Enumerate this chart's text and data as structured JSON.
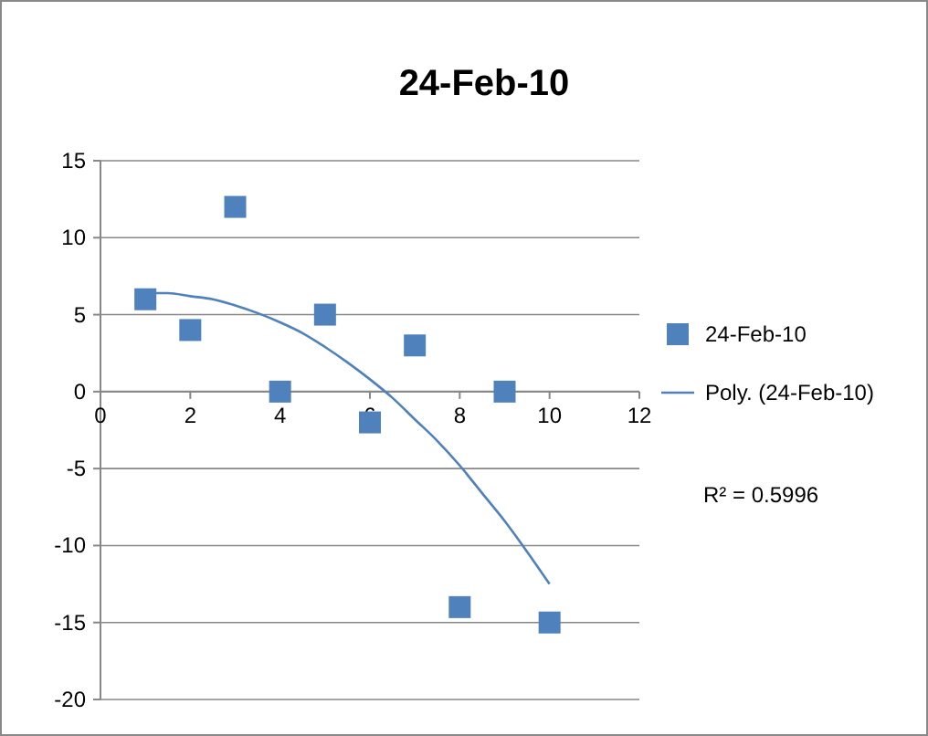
{
  "chart_data": {
    "type": "scatter",
    "title": "24-Feb-10",
    "xlim": [
      0,
      12
    ],
    "xticks": [
      0,
      2,
      4,
      6,
      8,
      10,
      12
    ],
    "ylim": [
      -20,
      15
    ],
    "yticks": [
      -20,
      -15,
      -10,
      -5,
      0,
      5,
      10,
      15
    ],
    "grid": "y",
    "legend": "right",
    "annotations": [
      "R² = 0.5996"
    ],
    "series": [
      {
        "name": "24-Feb-10",
        "marker": "square",
        "color": "#4f81bd",
        "x": [
          1,
          2,
          3,
          4,
          5,
          6,
          7,
          8,
          9,
          10
        ],
        "values": [
          6,
          4,
          12,
          0,
          5,
          -2,
          3,
          -14,
          0,
          -15
        ]
      },
      {
        "name": "Poly. (24-Feb-10)",
        "type": "line",
        "color": "#4f81bd",
        "x": [
          1,
          1.5,
          2,
          2.5,
          3,
          3.5,
          4,
          4.5,
          5,
          5.5,
          6,
          6.5,
          7,
          7.5,
          8,
          8.5,
          9,
          9.5,
          10
        ],
        "values": [
          6.4,
          6.4,
          6.2,
          6,
          5.6,
          5.1,
          4.5,
          3.8,
          2.9,
          1.9,
          0.8,
          -0.4,
          -1.8,
          -3.2,
          -4.8,
          -6.6,
          -8.4,
          -10.4,
          -12.5
        ]
      }
    ]
  }
}
